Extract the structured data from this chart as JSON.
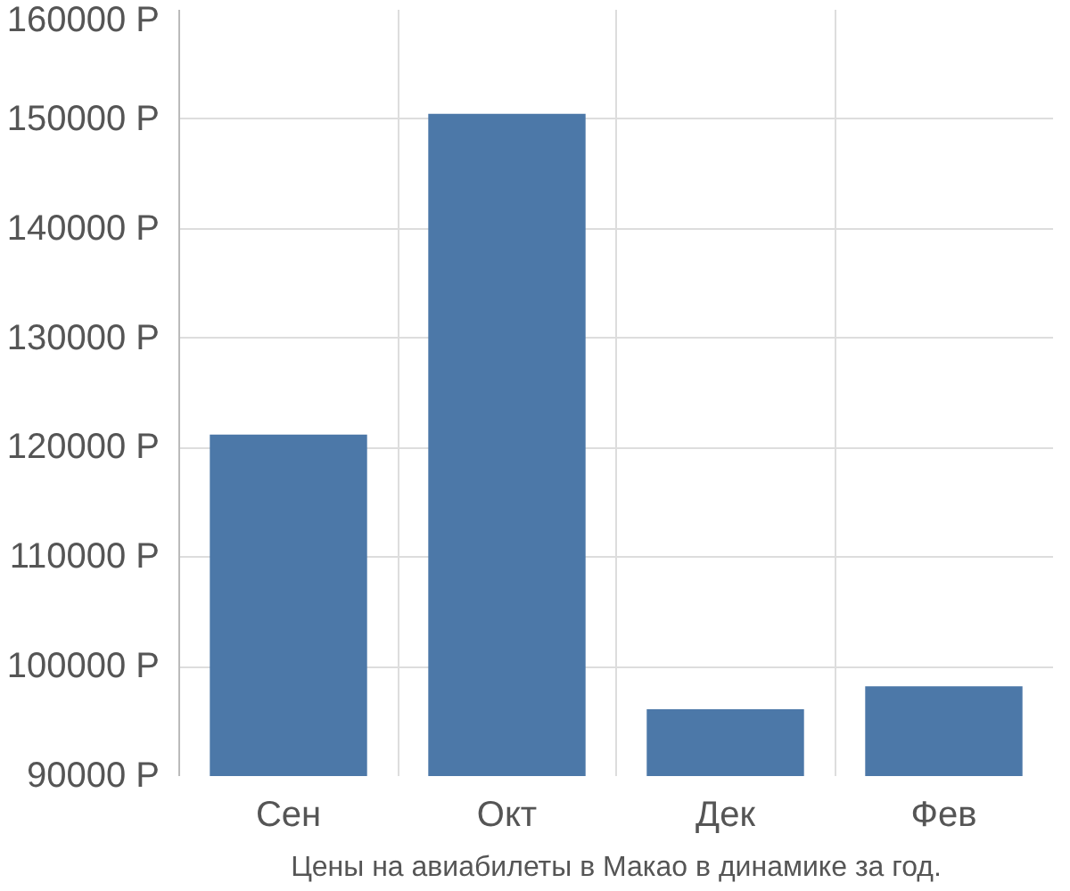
{
  "chart_data": {
    "type": "bar",
    "categories": [
      "Сен",
      "Окт",
      "Дек",
      "Фев"
    ],
    "values": [
      121200,
      150500,
      96100,
      98200
    ],
    "color": "#4c78a8",
    "ylim": [
      90000,
      160000
    ],
    "yticks": [
      {
        "value": 90000,
        "label": "90000 Р"
      },
      {
        "value": 100000,
        "label": "100000 Р"
      },
      {
        "value": 110000,
        "label": "110000 Р"
      },
      {
        "value": 120000,
        "label": "120000 Р"
      },
      {
        "value": 130000,
        "label": "130000 Р"
      },
      {
        "value": 140000,
        "label": "140000 Р"
      },
      {
        "value": 150000,
        "label": "150000 Р"
      },
      {
        "value": 160000,
        "label": "160000 Р"
      }
    ],
    "grid": true,
    "annotations": [
      "Цены на авиабилеты в Макао в динамике за год."
    ]
  }
}
